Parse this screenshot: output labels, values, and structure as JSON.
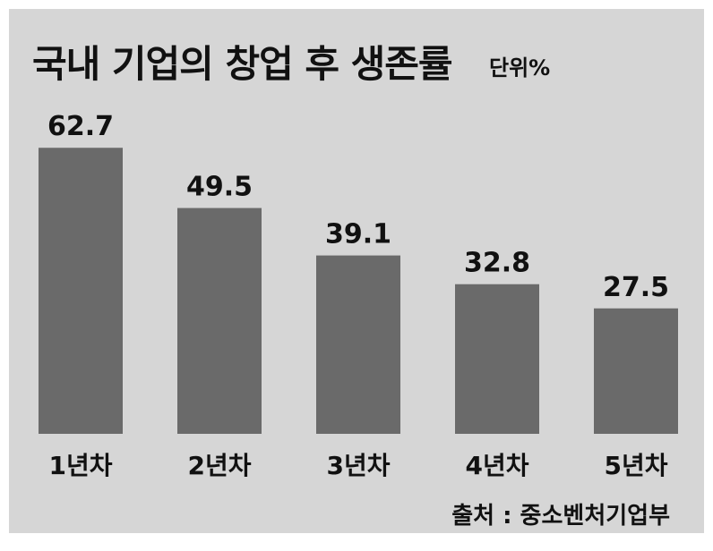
{
  "chart_data": {
    "type": "bar",
    "title": "국내 기업의 창업 후 생존률",
    "unit": "단위%",
    "categories": [
      "1년차",
      "2년차",
      "3년차",
      "4년차",
      "5년차"
    ],
    "values": [
      62.7,
      49.5,
      39.1,
      32.8,
      27.5
    ],
    "value_labels": [
      "62.7",
      "49.5",
      "39.1",
      "32.8",
      "27.5"
    ],
    "source": "출처 : 중소벤처기업부",
    "bar_color": "#6a6a6a",
    "background_color": "#d6d6d6",
    "grid": false
  }
}
